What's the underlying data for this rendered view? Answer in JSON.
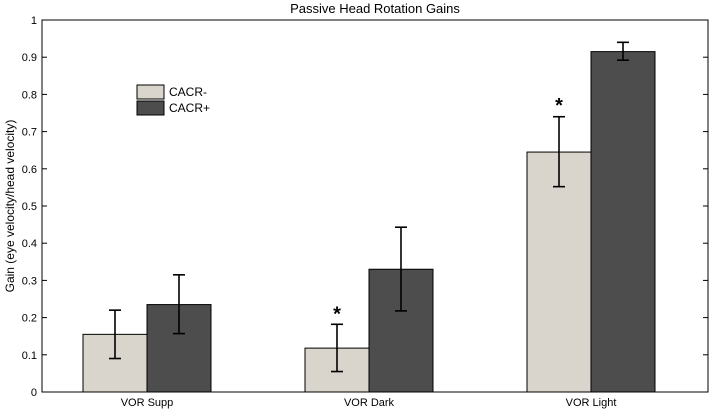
{
  "chart_data": {
    "type": "bar",
    "title": "Passive Head Rotation Gains",
    "xlabel": "",
    "ylabel": "Gain (eye velocity/head velocity)",
    "ylim": [
      0,
      1
    ],
    "yticks": [
      0,
      0.1,
      0.2,
      0.3,
      0.4,
      0.5,
      0.6,
      0.7,
      0.8,
      0.9,
      1
    ],
    "ytick_labels": [
      "0",
      "0.1",
      "0.2",
      "0.3",
      "0.4",
      "0.5",
      "0.6",
      "0.7",
      "0.8",
      "0.9",
      "1"
    ],
    "categories": [
      "VOR Supp",
      "VOR Dark",
      "VOR Light"
    ],
    "series": [
      {
        "name": "CACR-",
        "color": "#d9d4cc",
        "values": [
          0.155,
          0.118,
          0.645
        ],
        "err_low": [
          0.09,
          0.055,
          0.552
        ],
        "err_high": [
          0.22,
          0.182,
          0.74
        ]
      },
      {
        "name": "CACR+",
        "color": "#4d4d4d",
        "values": [
          0.235,
          0.33,
          0.915
        ],
        "err_low": [
          0.157,
          0.218,
          0.892
        ],
        "err_high": [
          0.315,
          0.443,
          0.94
        ]
      }
    ],
    "annotations": [
      {
        "text": "*",
        "category": 1,
        "series": 0,
        "y": 0.225
      },
      {
        "text": "*",
        "category": 2,
        "series": 0,
        "y": 0.785
      }
    ],
    "legend": {
      "position": "upper-left",
      "entries": [
        "CACR-",
        "CACR+"
      ]
    },
    "grid": false
  }
}
